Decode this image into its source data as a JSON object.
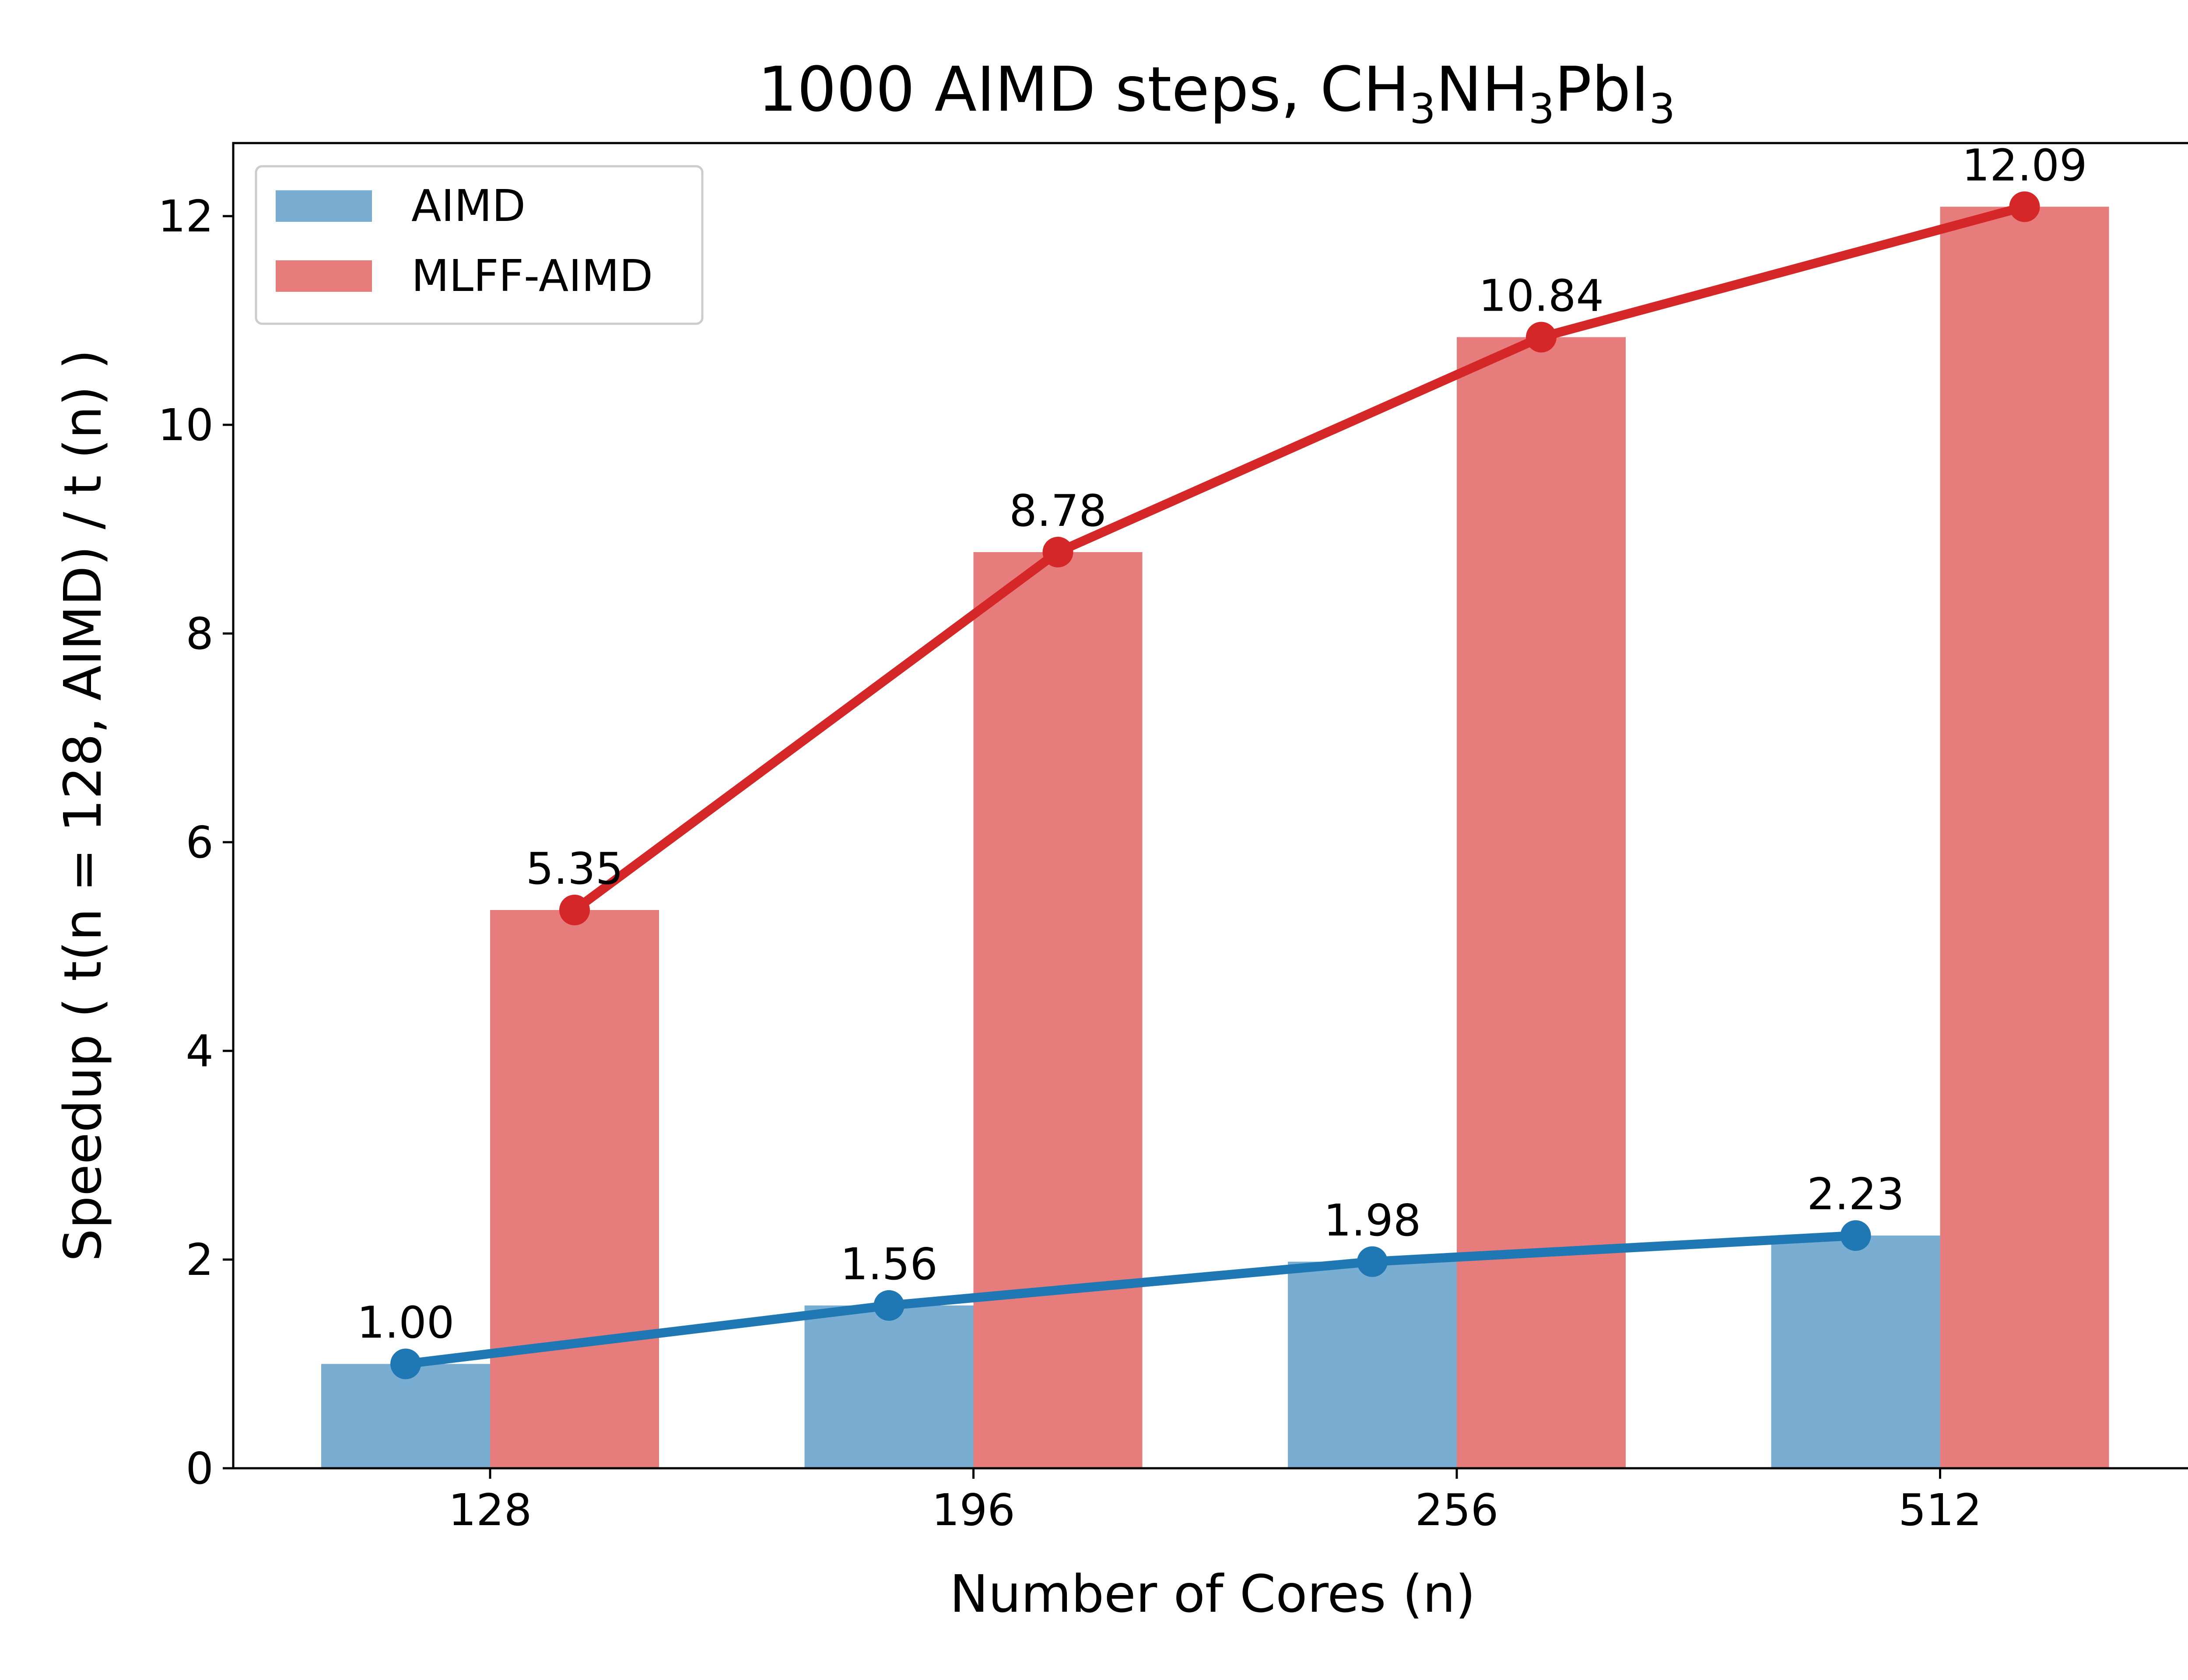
{
  "chart_data": {
    "type": "bar",
    "title": {
      "segments": [
        {
          "text": "1000 AIMD steps, CH"
        },
        {
          "text": "3",
          "sub": true
        },
        {
          "text": "NH"
        },
        {
          "text": "3",
          "sub": true
        },
        {
          "text": "PbI"
        },
        {
          "text": "3",
          "sub": true
        }
      ]
    },
    "xlabel": "Number of Cores (n)",
    "ylabel": "Speedup ( t(n = 128, AIMD) / t (n) )",
    "categories": [
      "128",
      "196",
      "256",
      "512"
    ],
    "ylim": [
      0,
      12.7
    ],
    "yticks": [
      0,
      2,
      4,
      6,
      8,
      10,
      12
    ],
    "grid": false,
    "legend_position": "top-left",
    "series": [
      {
        "name": "AIMD",
        "values": [
          1.0,
          1.56,
          1.98,
          2.23
        ],
        "labels": [
          "1.00",
          "1.56",
          "1.98",
          "2.23"
        ],
        "bar_color": "#79add2",
        "line_color": "#1f77b4"
      },
      {
        "name": "MLFF-AIMD",
        "values": [
          5.35,
          8.78,
          10.84,
          12.09
        ],
        "labels": [
          "5.35",
          "8.78",
          "10.84",
          "12.09"
        ],
        "bar_color": "#e77c7c",
        "line_color": "#d62728"
      }
    ]
  }
}
